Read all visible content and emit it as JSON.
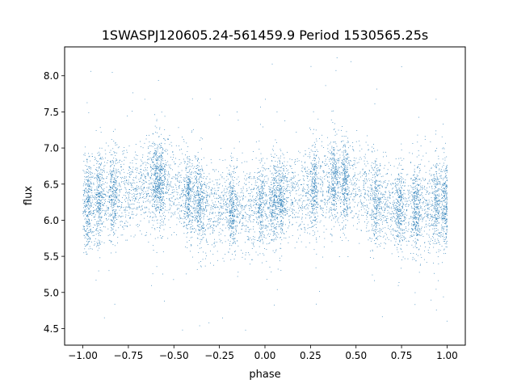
{
  "chart_data": {
    "type": "scatter",
    "title": "1SWASPJ120605.24-561459.9 Period 1530565.25s",
    "xlabel": "phase",
    "ylabel": "flux",
    "xlim": [
      -1.1,
      1.1
    ],
    "ylim": [
      4.27,
      8.4
    ],
    "xticks": [
      -1.0,
      -0.75,
      -0.5,
      -0.25,
      0.0,
      0.25,
      0.5,
      0.75,
      1.0
    ],
    "xtick_labels": [
      "−1.00",
      "−0.75",
      "−0.50",
      "−0.25",
      "0.00",
      "0.25",
      "0.50",
      "0.75",
      "1.00"
    ],
    "yticks": [
      4.5,
      5.0,
      5.5,
      6.0,
      6.5,
      7.0,
      7.5,
      8.0
    ],
    "ytick_labels": [
      "4.5",
      "5.0",
      "5.5",
      "6.0",
      "6.5",
      "7.0",
      "7.5",
      "8.0"
    ],
    "grid": false,
    "marker_color": "#1f77b4",
    "series": [
      {
        "phase_profile": {
          "x": [
            -1.0,
            -0.9,
            -0.8,
            -0.7,
            -0.6,
            -0.5,
            -0.4,
            -0.3,
            -0.2,
            -0.1,
            0.0,
            0.1,
            0.2,
            0.3,
            0.4,
            0.5,
            0.6,
            0.7,
            0.8,
            0.9,
            1.0
          ],
          "mean_flux": [
            6.2,
            6.3,
            6.35,
            6.45,
            6.55,
            6.45,
            6.3,
            6.15,
            6.15,
            6.2,
            6.2,
            6.3,
            6.35,
            6.45,
            6.55,
            6.45,
            6.3,
            6.15,
            6.15,
            6.2,
            6.2
          ],
          "spread": 0.3
        },
        "clumps": [
          -0.97,
          -0.91,
          -0.83,
          -0.6,
          -0.57,
          -0.42,
          -0.36,
          -0.18,
          -0.02,
          0.05,
          0.09,
          0.27,
          0.38,
          0.44,
          0.61,
          0.74,
          0.83,
          0.94,
          0.99
        ],
        "n_points": 9000
      }
    ]
  }
}
